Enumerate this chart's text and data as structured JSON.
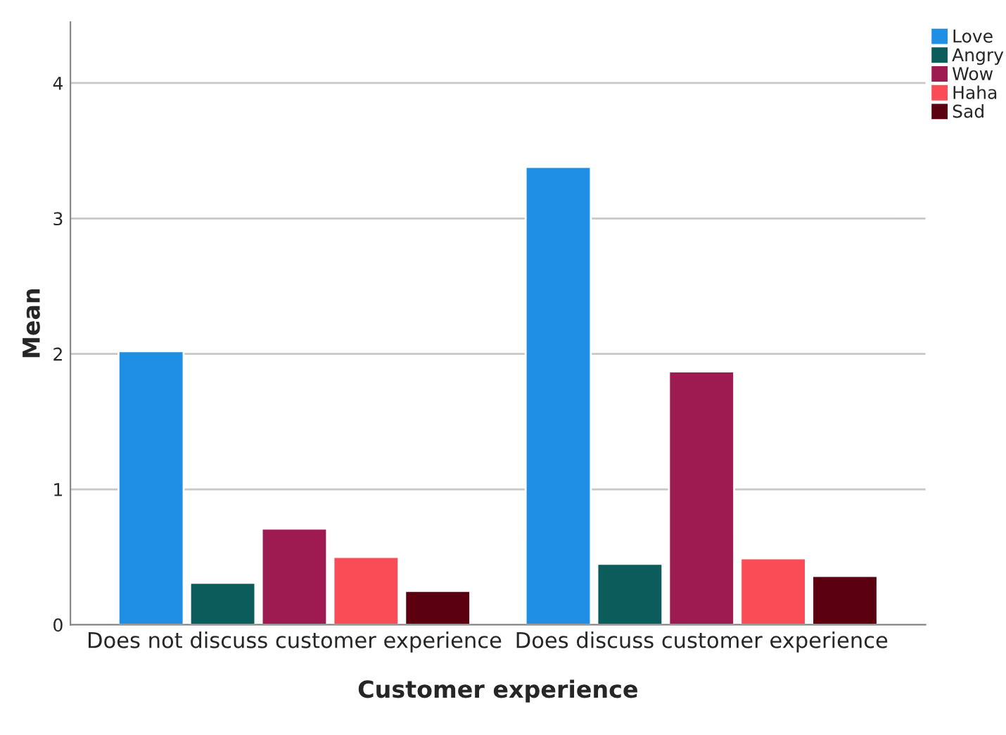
{
  "chart_data": {
    "type": "bar",
    "xlabel": "Customer experience",
    "ylabel": "Mean",
    "categories": [
      "Does not discuss customer experience",
      "Does discuss customer experience"
    ],
    "series": [
      {
        "name": "Love",
        "color": "#1f8fe5",
        "values": [
          2.02,
          3.38
        ]
      },
      {
        "name": "Angry",
        "color": "#0b5c5a",
        "values": [
          0.31,
          0.45
        ]
      },
      {
        "name": "Wow",
        "color": "#9e1b51",
        "values": [
          0.71,
          1.87
        ]
      },
      {
        "name": "Haha",
        "color": "#f94c56",
        "values": [
          0.5,
          0.49
        ]
      },
      {
        "name": "Sad",
        "color": "#5a0010",
        "values": [
          0.25,
          0.36
        ]
      }
    ],
    "ylim": [
      0,
      4.45
    ],
    "yticks": [
      0,
      1,
      2,
      3,
      4
    ],
    "grid": "y",
    "legend": "top right"
  }
}
